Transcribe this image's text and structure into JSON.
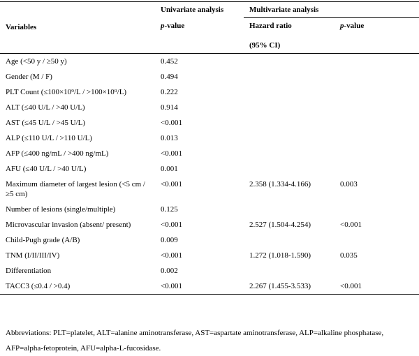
{
  "header": {
    "univariate": "Univariate analysis",
    "multivariate": "Multivariate analysis",
    "variables": "Variables",
    "univariate_p": [
      "p",
      "-value"
    ],
    "hazard_ratio": "Hazard ratio",
    "ci": "(95% CI)",
    "multivariate_p": [
      "p",
      "-value"
    ]
  },
  "table": {
    "rows": [
      [
        "Age (<50 y / ≥50 y)",
        "0.452",
        null,
        null
      ],
      [
        "Gender (M / F)",
        "0.494",
        null,
        null
      ],
      [
        "PLT Count (≤100×10⁹/L / >100×10⁹/L)",
        "0.222",
        null,
        null
      ],
      [
        "ALT (≤40 U/L / >40 U/L)",
        "0.914",
        null,
        null
      ],
      [
        "AST (≤45 U/L / >45 U/L)",
        "<0.001",
        null,
        null
      ],
      [
        "ALP (≤110 U/L / >110 U/L)",
        "0.013",
        null,
        null
      ],
      [
        "AFP (≤400 ng/mL / >400 ng/mL)",
        "<0.001",
        null,
        null
      ],
      [
        "AFU (≤40 U/L / >40 U/L)",
        "0.001",
        null,
        null
      ],
      [
        "Maximum diameter of largest lesion (<5 cm / ≥5 cm)",
        "<0.001",
        "2.358 (1.334-4.166)",
        "0.003"
      ],
      [
        "Number of lesions (single/multiple)",
        "0.125",
        null,
        null
      ],
      [
        "Microvascular invasion (absent/ present)",
        "<0.001",
        "2.527 (1.504-4.254)",
        "<0.001"
      ],
      [
        "Child-Pugh grade (A/B)",
        "0.009",
        null,
        null
      ],
      [
        "TNM (I/II/III/IV)",
        "<0.001",
        "1.272 (1.018-1.590)",
        "0.035"
      ],
      [
        "Differentiation",
        "0.002",
        null,
        null
      ],
      [
        "TACC3 (≤0.4 / >0.4)",
        "<0.001",
        "2.267 (1.455-3.533)",
        "<0.001"
      ]
    ]
  },
  "footnote": "Abbreviations: PLT=platelet, ALT=alanine aminotransferase, AST=aspartate aminotransferase, ALP=alkaline phosphatase, AFP=alpha-fetoprotein, AFU=alpha-L-fucosidase."
}
